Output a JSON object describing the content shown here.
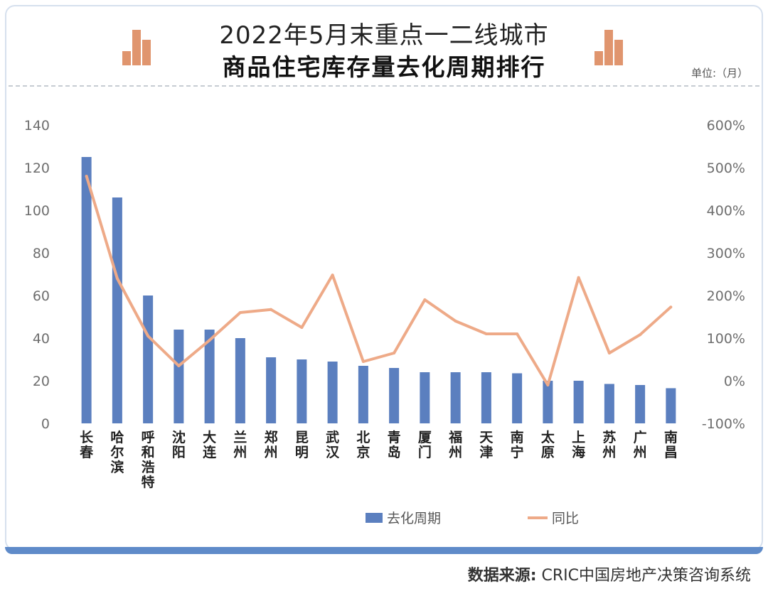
{
  "header": {
    "title_line1": "2022年5月末重点一二线城市",
    "title_line2": "商品住宅库存量去化周期排行",
    "unit": "单位:（月）"
  },
  "source": {
    "label": "数据来源:",
    "text": "CRIC中国房地产决策咨询系统"
  },
  "colors": {
    "bar": "#5b7fbf",
    "line": "#eeaa88",
    "deco": "#e0956e"
  },
  "chart_data": {
    "type": "bar",
    "title": "2022年5月末重点一二线城市 商品住宅库存量去化周期排行",
    "categories": [
      "长春",
      "哈尔滨",
      "呼和浩特",
      "沈阳",
      "大连",
      "兰州",
      "郑州",
      "昆明",
      "武汉",
      "北京",
      "青岛",
      "厦门",
      "福州",
      "天津",
      "南宁",
      "太原",
      "上海",
      "苏州",
      "广州",
      "南昌"
    ],
    "series": [
      {
        "name": "去化周期",
        "type": "bar",
        "axis": "left",
        "values": [
          125,
          106,
          60,
          44,
          44,
          40,
          31,
          30,
          29,
          27,
          26,
          24,
          24,
          24,
          23.5,
          20,
          20,
          18.5,
          18,
          16.5
        ]
      },
      {
        "name": "同比",
        "type": "line",
        "axis": "right",
        "values": [
          4.8,
          2.4,
          1.05,
          0.35,
          0.95,
          1.6,
          1.67,
          1.25,
          2.48,
          0.45,
          0.65,
          1.9,
          1.4,
          1.1,
          1.1,
          -0.1,
          2.42,
          0.65,
          1.08,
          1.73
        ]
      }
    ],
    "y_left": {
      "min": 0,
      "max": 140,
      "ticks": [
        "0",
        "20",
        "40",
        "60",
        "80",
        "100",
        "120",
        "140"
      ]
    },
    "y_right": {
      "min": -1,
      "max": 6,
      "ticks": [
        "-100%",
        "0%",
        "100%",
        "200%",
        "300%",
        "400%",
        "500%",
        "600%"
      ]
    },
    "legend": [
      "去化周期",
      "同比"
    ],
    "legend_position": "bottom",
    "grid": false
  }
}
